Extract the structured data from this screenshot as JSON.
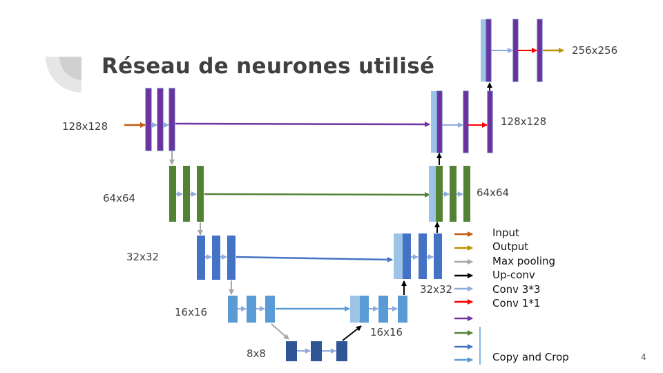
{
  "slide": {
    "title": "Réseau de neurones utilisé",
    "page_number": "4"
  },
  "sizes": {
    "s128_left": "128x128",
    "s64_left": "64x64",
    "s32_left": "32x32",
    "s16_left": "16x16",
    "s8": "8x8",
    "s16_right": "16x16",
    "s32_right": "32x32",
    "s64_right": "64x64",
    "s128_right": "128x128",
    "s256": "256x256"
  },
  "legend": {
    "input": "Input",
    "output": "Output",
    "max_pooling": "Max pooling",
    "up_conv": "Up-conv",
    "conv33": "Conv 3*3",
    "conv11": "Conv 1*1",
    "copy_crop": "Copy and Crop"
  },
  "colors": {
    "input": "#c55a11",
    "output": "#bf9000",
    "max_pooling": "#a6a6a6",
    "up_conv": "#000000",
    "conv33": "#8faadc",
    "conv11": "#ff0000",
    "copy_purple": "#7030a0",
    "copy_green": "#548235",
    "copy_blue": "#4472c4",
    "copy_lightblue": "#5b9bd5",
    "level1_block": "#7030a0",
    "level2_block": "#548235",
    "level3_block": "#4472c4",
    "level4_block": "#5b9bd5",
    "level5_block": "#2f5597",
    "concat_block": "#9dc3e6"
  }
}
